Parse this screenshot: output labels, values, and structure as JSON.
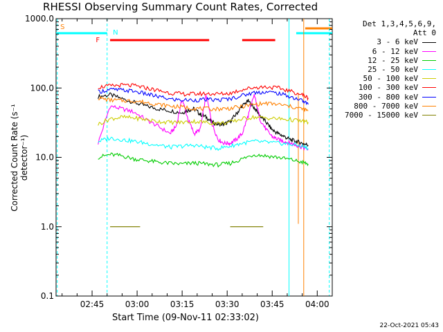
{
  "chart_data": {
    "type": "line",
    "title": "RHESSI Observing Summary Count Rates, Corrected",
    "xlabel": "Start Time (09-Nov-11 02:33:02)",
    "ylabel": "Corrected Count Rate (s⁻¹ detector⁻¹)",
    "yscale": "log",
    "ylim": [
      0.1,
      1000
    ],
    "xlim_minutes": [
      0,
      92
    ],
    "x_tick_minutes": [
      12,
      27,
      42,
      57,
      72,
      87
    ],
    "x_tick_labels": [
      "02:45",
      "03:00",
      "03:15",
      "03:30",
      "03:45",
      "04:00"
    ],
    "y_tick_values": [
      0.1,
      1,
      10,
      100,
      1000
    ],
    "y_tick_labels": [
      "0.1",
      "1.0",
      "10.0",
      "100.0",
      "1000.0"
    ],
    "legend_header": [
      "Det 1,3,4,5,6,9,",
      "Att 0"
    ],
    "series": [
      {
        "name": "3 - 6 keV",
        "color": "#000000",
        "x": [
          14,
          18,
          22,
          26,
          30,
          34,
          38,
          42,
          44,
          46,
          48,
          50,
          52,
          54,
          56,
          58,
          60,
          62,
          64,
          66,
          68,
          70,
          72,
          74,
          76,
          78,
          80,
          82,
          84
        ],
        "values": [
          75,
          80,
          70,
          62,
          55,
          50,
          47,
          44,
          48,
          50,
          42,
          38,
          32,
          30,
          30,
          33,
          42,
          55,
          65,
          52,
          40,
          32,
          25,
          22,
          20,
          18,
          17,
          16,
          15
        ]
      },
      {
        "name": "6 - 12 keV",
        "color": "#ff00ff",
        "x": [
          14,
          18,
          22,
          26,
          30,
          34,
          38,
          40,
          42,
          44,
          46,
          48,
          50,
          52,
          54,
          56,
          58,
          60,
          62,
          64,
          66,
          68,
          70,
          72,
          74,
          76,
          78,
          80,
          82,
          84
        ],
        "values": [
          16,
          55,
          50,
          45,
          35,
          28,
          22,
          28,
          70,
          35,
          22,
          25,
          80,
          30,
          18,
          16,
          16,
          18,
          22,
          40,
          80,
          35,
          25,
          20,
          18,
          17,
          16,
          15,
          14,
          13
        ]
      },
      {
        "name": "12 - 25 keV",
        "color": "#00cc00",
        "x": [
          14,
          18,
          22,
          26,
          30,
          34,
          38,
          42,
          46,
          50,
          54,
          58,
          62,
          66,
          70,
          74,
          78,
          82,
          84
        ],
        "values": [
          10,
          11,
          10.5,
          9.5,
          9,
          8.5,
          8.2,
          8,
          8.3,
          8,
          7.8,
          8.2,
          9.5,
          11,
          10.5,
          10,
          9.3,
          8.5,
          8
        ]
      },
      {
        "name": "25 - 50 keV",
        "color": "#00ffff",
        "x": [
          14,
          18,
          22,
          26,
          30,
          34,
          38,
          42,
          46,
          50,
          54,
          58,
          62,
          66,
          70,
          74,
          78,
          82,
          84
        ],
        "values": [
          17,
          19,
          18,
          17,
          16,
          15,
          14,
          14.5,
          15,
          14,
          13.5,
          14.5,
          16,
          17,
          16.5,
          16,
          15.5,
          14.5,
          13.5
        ]
      },
      {
        "name": "50 - 100 keV",
        "color": "#cccc00",
        "x": [
          14,
          18,
          22,
          26,
          30,
          34,
          38,
          42,
          46,
          50,
          54,
          58,
          62,
          66,
          70,
          74,
          78,
          82,
          84
        ],
        "values": [
          30,
          36,
          38,
          37,
          35,
          33,
          32,
          32,
          33,
          32,
          31,
          32,
          36,
          38,
          37,
          36,
          35,
          33,
          32
        ]
      },
      {
        "name": "100 - 300 keV",
        "color": "#ff0000",
        "x": [
          14,
          18,
          22,
          26,
          30,
          34,
          38,
          42,
          46,
          50,
          54,
          58,
          62,
          66,
          70,
          74,
          78,
          82,
          84
        ],
        "values": [
          103,
          107,
          110,
          108,
          100,
          92,
          85,
          82,
          82,
          83,
          82,
          84,
          95,
          102,
          104,
          100,
          90,
          80,
          72
        ]
      },
      {
        "name": "300 - 800 keV",
        "color": "#0000ff",
        "x": [
          14,
          18,
          22,
          26,
          30,
          34,
          38,
          42,
          46,
          50,
          54,
          58,
          62,
          66,
          70,
          74,
          78,
          82,
          84
        ],
        "values": [
          88,
          95,
          93,
          90,
          82,
          75,
          69,
          67,
          67,
          68,
          67,
          70,
          78,
          86,
          88,
          84,
          75,
          66,
          58
        ]
      },
      {
        "name": "800 - 7000 keV",
        "color": "#ff8000",
        "x": [
          14,
          18,
          22,
          26,
          30,
          34,
          38,
          42,
          46,
          50,
          54,
          58,
          62,
          66,
          70,
          74,
          78,
          82,
          84
        ],
        "values": [
          72,
          67,
          66,
          65,
          62,
          58,
          55,
          53,
          51,
          50,
          50,
          51,
          54,
          58,
          60,
          58,
          54,
          50,
          47
        ]
      },
      {
        "name": "7000 - 15000 keV",
        "color": "#808000",
        "x": [
          18,
          30,
          60,
          72
        ],
        "values": [
          1.0,
          1.0,
          1.0,
          1.0
        ]
      }
    ],
    "annotations": [
      {
        "label": "S",
        "color": "#ff8000",
        "x_minutes": 0.5
      },
      {
        "label": "N",
        "color": "#00ffff",
        "x_minutes": 18
      },
      {
        "label": "F",
        "color": "#ff0000",
        "x_minutes": 16
      }
    ]
  },
  "footer": {
    "timestamp": "22-Oct-2021 05:43"
  }
}
